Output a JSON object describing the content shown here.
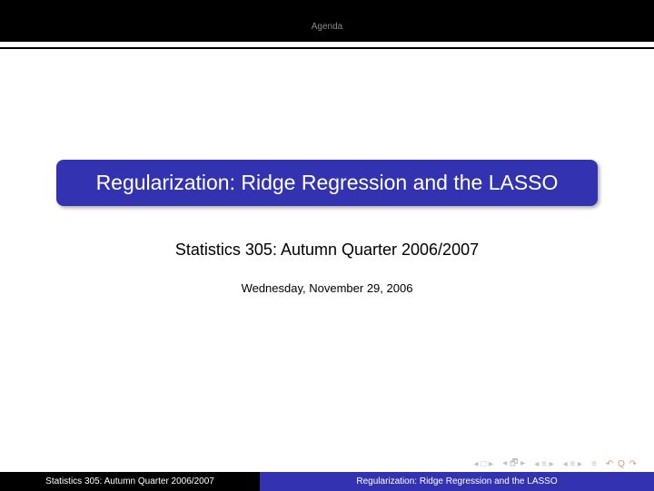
{
  "header": {
    "section_label": "Agenda"
  },
  "slide": {
    "title": "Regularization: Ridge Regression and the LASSO",
    "subtitle": "Statistics 305: Autumn Quarter 2006/2007",
    "date": "Wednesday, November 29, 2006",
    "title_bg": "#3333b2",
    "title_color": "#ffffff"
  },
  "nav": {
    "first": "◂ □ ▸",
    "prev": "◂ 🗗 ▸",
    "next1": "◂ ≡ ▸",
    "next2": "◂ ≡ ▸",
    "menu": "≡",
    "redo": "↶ Q ↷"
  },
  "footer": {
    "left": "Statistics 305: Autumn Quarter 2006/2007",
    "right": "Regularization: Ridge Regression and the LASSO",
    "left_bg": "#000000",
    "right_bg": "#3333b2"
  }
}
